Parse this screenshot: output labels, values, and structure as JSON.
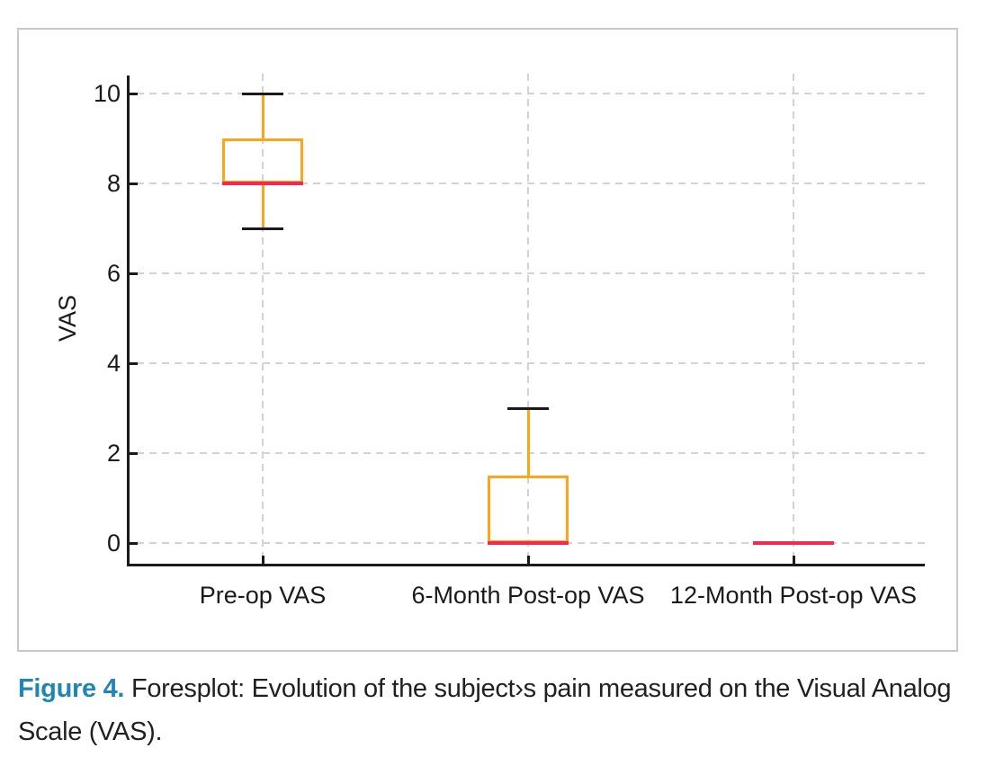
{
  "chart_data": {
    "type": "box",
    "title": "",
    "xlabel": "",
    "ylabel": "VAS",
    "categories": [
      "Pre-op VAS",
      "6-Month Post-op VAS",
      "12-Month Post-op VAS"
    ],
    "yticks": [
      0,
      2,
      4,
      6,
      8,
      10
    ],
    "ylim": [
      -0.5,
      10.5
    ],
    "grid": {
      "horizontal": "dashed",
      "vertical": "dashed"
    },
    "legend": "none",
    "series": [
      {
        "category": "Pre-op VAS",
        "whisker_low": 7,
        "q1": 8,
        "median": 8,
        "q3": 9,
        "whisker_high": 10
      },
      {
        "category": "6-Month Post-op VAS",
        "whisker_low": 0,
        "q1": 0,
        "median": 0,
        "q3": 1.5,
        "whisker_high": 3
      },
      {
        "category": "12-Month Post-op VAS",
        "whisker_low": 0,
        "q1": 0,
        "median": 0,
        "q3": 0,
        "whisker_high": 0
      }
    ],
    "colors": {
      "box_outline": "#ffa418",
      "median": "#f5294d",
      "whisker_line": "#ffa418",
      "whisker_cap": "#1a1a1a",
      "axis": "#1a1a1a",
      "grid": "#d3d3d3",
      "panel_border": "#c8c8c8"
    }
  },
  "caption": {
    "label": "Figure 4.",
    "text": "Foresplot: Evolution of the subject›s pain measured on the Visual Analog Scale (VAS).",
    "label_color": "#2186b5"
  }
}
